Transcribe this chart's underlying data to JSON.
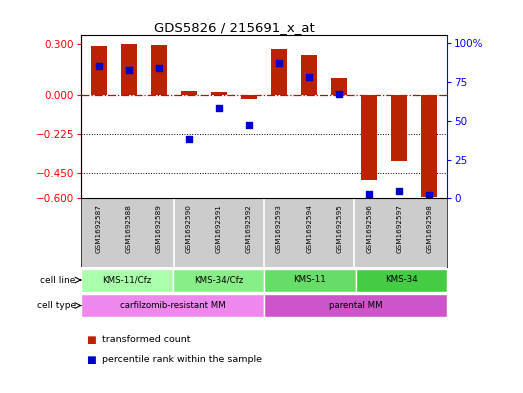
{
  "title": "GDS5826 / 215691_x_at",
  "samples": [
    "GSM1692587",
    "GSM1692588",
    "GSM1692589",
    "GSM1692590",
    "GSM1692591",
    "GSM1692592",
    "GSM1692593",
    "GSM1692594",
    "GSM1692595",
    "GSM1692596",
    "GSM1692597",
    "GSM1692598"
  ],
  "transformed_count": [
    0.29,
    0.3,
    0.295,
    0.025,
    0.02,
    -0.02,
    0.27,
    0.235,
    0.1,
    -0.49,
    -0.38,
    -0.59
  ],
  "percentile_rank": [
    85,
    83,
    84,
    38,
    58,
    47,
    87,
    78,
    67,
    3,
    5,
    2
  ],
  "ylim_left": [
    -0.6,
    0.35
  ],
  "ylim_right": [
    0,
    105
  ],
  "yticks_left": [
    0.3,
    0,
    -0.225,
    -0.45,
    -0.6
  ],
  "yticks_right": [
    100,
    75,
    50,
    25,
    0
  ],
  "bar_color": "#bb2200",
  "dot_color": "#0000cc",
  "zero_line_color": "#cc0000",
  "grid_line_color": "#000000",
  "cell_line_groups": [
    {
      "label": "KMS-11/Cfz",
      "start": 0,
      "end": 3,
      "color": "#aaffaa"
    },
    {
      "label": "KMS-34/Cfz",
      "start": 3,
      "end": 6,
      "color": "#88ee88"
    },
    {
      "label": "KMS-11",
      "start": 6,
      "end": 9,
      "color": "#66dd66"
    },
    {
      "label": "KMS-34",
      "start": 9,
      "end": 12,
      "color": "#44cc44"
    }
  ],
  "cell_type_groups": [
    {
      "label": "carfilzomib-resistant MM",
      "start": 0,
      "end": 6,
      "color": "#ee88ee"
    },
    {
      "label": "parental MM",
      "start": 6,
      "end": 12,
      "color": "#cc55cc"
    }
  ],
  "legend_items": [
    {
      "label": "transformed count",
      "color": "#bb2200"
    },
    {
      "label": "percentile rank within the sample",
      "color": "#0000cc"
    }
  ],
  "background_color": "#ffffff",
  "plot_bg_color": "#ffffff",
  "sample_bg_color": "#cccccc"
}
